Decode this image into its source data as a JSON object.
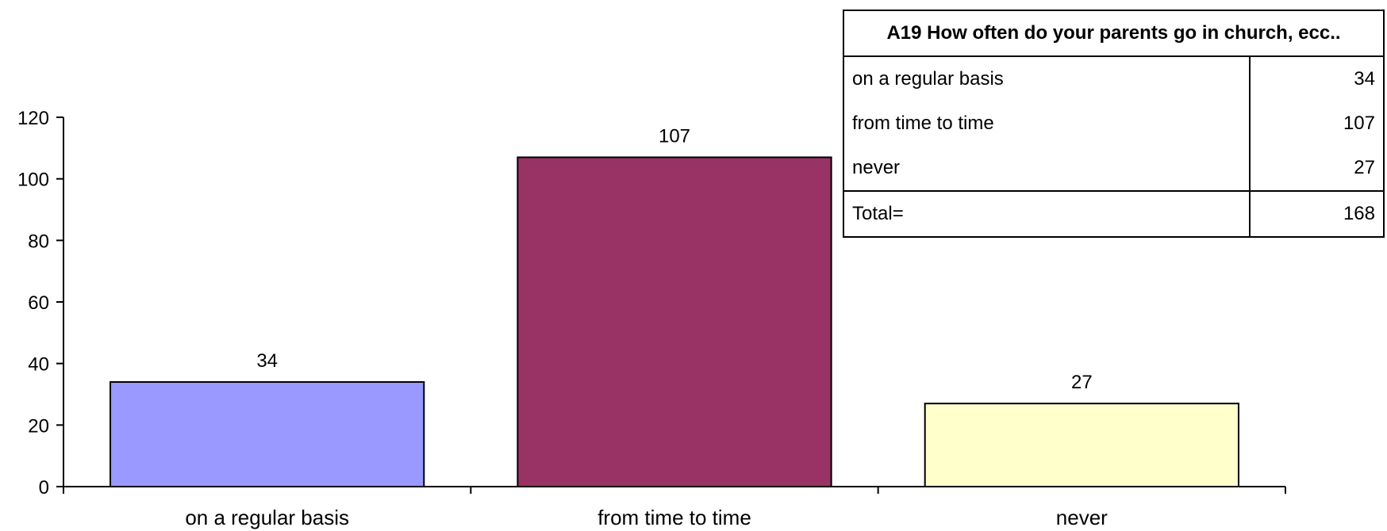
{
  "chart_data": {
    "type": "bar",
    "categories": [
      "on a regular basis",
      "from time to time",
      "never"
    ],
    "values": [
      34,
      107,
      27
    ],
    "colors": [
      "#9999ff",
      "#993366",
      "#ffffcc"
    ],
    "ylim": [
      0,
      120
    ],
    "yticks": [
      0,
      20,
      40,
      60,
      80,
      100,
      120
    ],
    "data_labels": [
      "34",
      "107",
      "27"
    ],
    "title": "",
    "xlabel": "",
    "ylabel": "",
    "legend": "none",
    "grid": false
  },
  "table": {
    "title": "A19 How often do your parents go in church, ecc..",
    "rows": [
      {
        "label": "on a regular basis",
        "value": "34"
      },
      {
        "label": "from time to time",
        "value": "107"
      },
      {
        "label": "never",
        "value": "27"
      }
    ],
    "total_label": "Total=",
    "total_value": "168"
  }
}
